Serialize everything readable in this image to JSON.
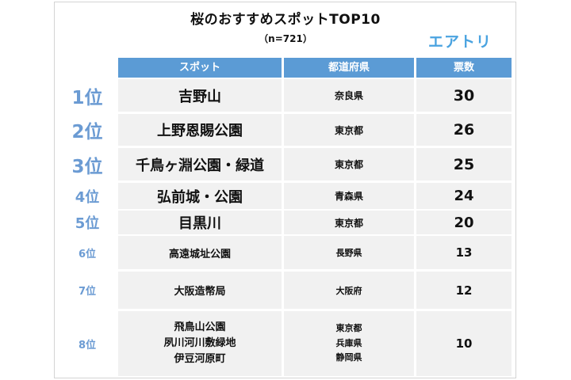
{
  "header": {
    "title": "桜のおすすめスポットTOP10",
    "subtitle": "（n=721）",
    "logo": "エアトリ"
  },
  "table": {
    "columns": [
      "スポット",
      "都道府県",
      "票数"
    ],
    "rows": [
      {
        "rank": "1位",
        "spots": [
          "吉野山"
        ],
        "prefs": [
          "奈良県"
        ],
        "votes": "30"
      },
      {
        "rank": "2位",
        "spots": [
          "上野恩賜公園"
        ],
        "prefs": [
          "東京都"
        ],
        "votes": "26"
      },
      {
        "rank": "3位",
        "spots": [
          "千鳥ヶ淵公園・緑道"
        ],
        "prefs": [
          "東京都"
        ],
        "votes": "25"
      },
      {
        "rank": "4位",
        "spots": [
          "弘前城・公園"
        ],
        "prefs": [
          "青森県"
        ],
        "votes": "24"
      },
      {
        "rank": "5位",
        "spots": [
          "目黒川"
        ],
        "prefs": [
          "東京都"
        ],
        "votes": "20"
      },
      {
        "rank": "6位",
        "spots": [
          "高遠城址公園"
        ],
        "prefs": [
          "長野県"
        ],
        "votes": "13"
      },
      {
        "rank": "7位",
        "spots": [
          "大阪造幣局"
        ],
        "prefs": [
          "大阪府"
        ],
        "votes": "12"
      },
      {
        "rank": "8位",
        "spots": [
          "飛鳥山公園",
          "夙川河川敷緑地",
          "伊豆河原町"
        ],
        "prefs": [
          "東京都",
          "兵庫県",
          "静岡県"
        ],
        "votes": "10"
      }
    ]
  }
}
